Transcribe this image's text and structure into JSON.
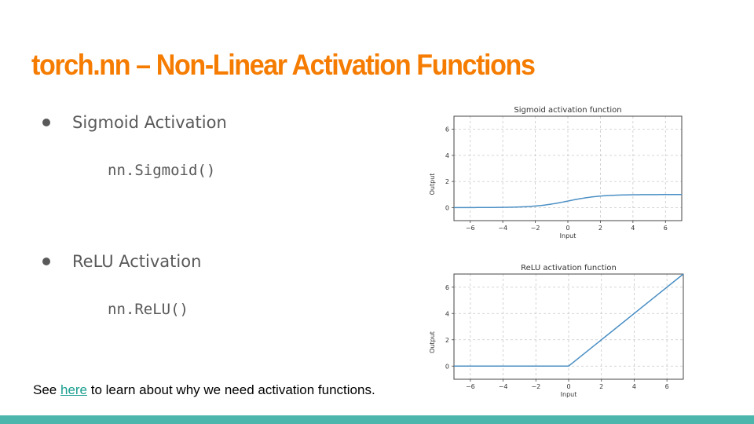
{
  "slide": {
    "title": "torch.nn – Non-Linear Activation Functions",
    "bullets": [
      {
        "label": "Sigmoid Activation",
        "code": "nn.Sigmoid()"
      },
      {
        "label": "ReLU Activation",
        "code": "nn.ReLU()"
      }
    ],
    "footnote": {
      "before": "See ",
      "link": "here",
      "after": " to learn about why we need activation functions."
    }
  },
  "colors": {
    "title": "#f57c00",
    "text": "#595959",
    "link": "#1a9e8f",
    "bar": "#4db6ac",
    "line": "#4a8fc4"
  },
  "chart_data": [
    {
      "type": "line",
      "title": "Sigmoid activation function",
      "xlabel": "Input",
      "ylabel": "Output",
      "xlim": [
        -7,
        7
      ],
      "ylim": [
        -1,
        7
      ],
      "xticks": [
        -6,
        -4,
        -2,
        0,
        2,
        4,
        6
      ],
      "yticks": [
        0,
        2,
        4,
        6
      ],
      "grid": true,
      "series": [
        {
          "function": "sigmoid",
          "x": [
            -7,
            -6,
            -5,
            -4,
            -3,
            -2,
            -1,
            0,
            1,
            2,
            3,
            4,
            5,
            6,
            7
          ],
          "values": [
            0.001,
            0.002,
            0.007,
            0.018,
            0.047,
            0.119,
            0.269,
            0.5,
            0.731,
            0.881,
            0.953,
            0.982,
            0.993,
            0.998,
            0.999
          ]
        }
      ]
    },
    {
      "type": "line",
      "title": "ReLU activation function",
      "xlabel": "Input",
      "ylabel": "Output",
      "xlim": [
        -7,
        7
      ],
      "ylim": [
        -1,
        7
      ],
      "xticks": [
        -6,
        -4,
        -2,
        0,
        2,
        4,
        6
      ],
      "yticks": [
        0,
        2,
        4,
        6
      ],
      "grid": true,
      "series": [
        {
          "function": "relu",
          "x": [
            -7,
            0,
            7
          ],
          "values": [
            0,
            0,
            7
          ]
        }
      ]
    }
  ]
}
